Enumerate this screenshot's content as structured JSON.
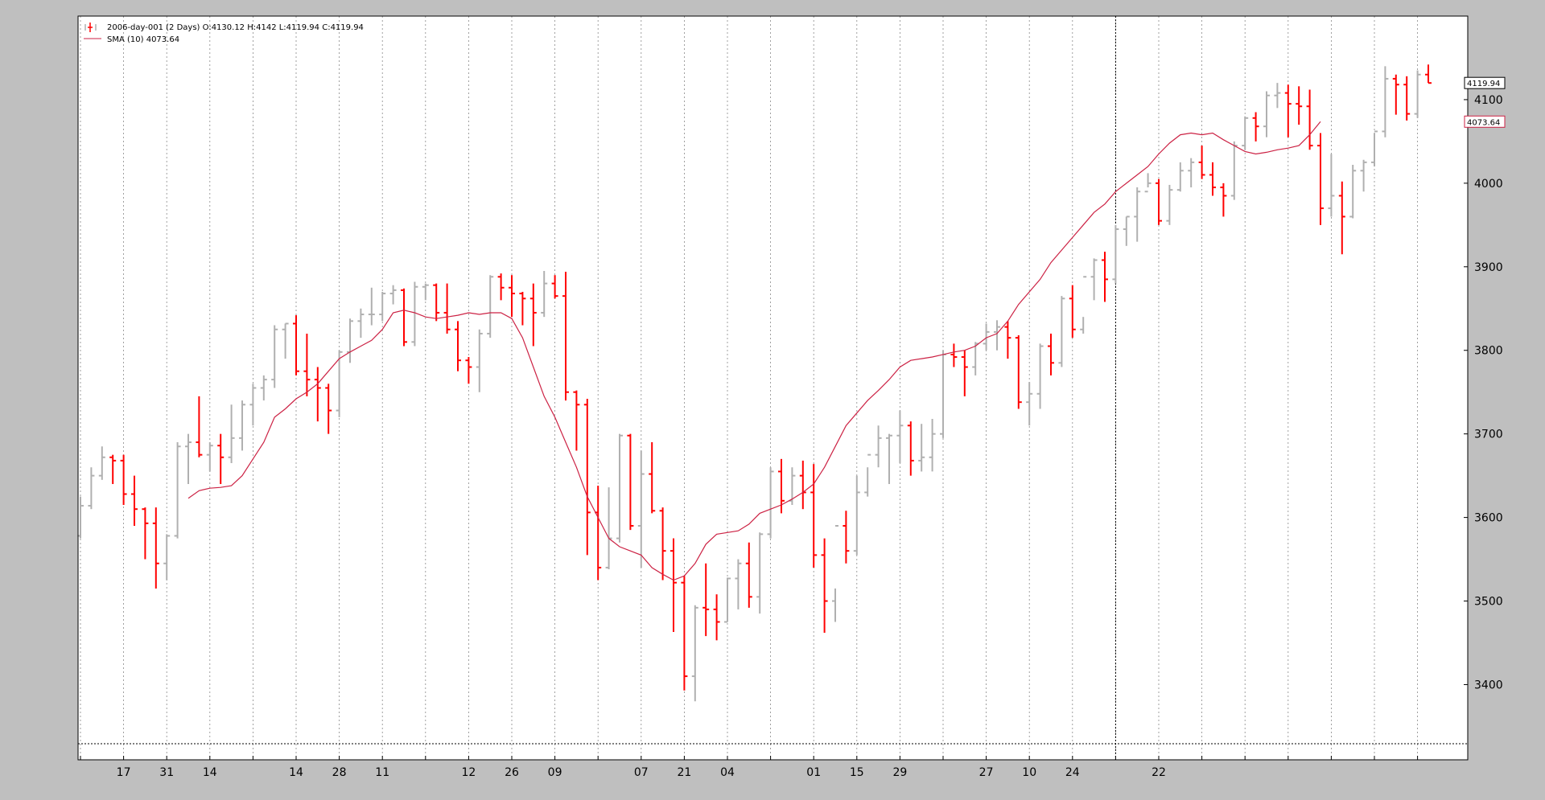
{
  "legend": {
    "ohlc_label": "2006-day-001 (2 Days) O:4130.12 H:4142 L:4119.94 C:4119.94",
    "sma_label": "SMA (10) 4073.64"
  },
  "price_tags": {
    "close": "4119.94",
    "sma": "4073.64"
  },
  "colors": {
    "up_bar": "#b0b0b0",
    "down_bar": "#ff0000",
    "sma_line": "#cc2244",
    "background": "#ffffff",
    "frame": "#bfbfbf",
    "grid": "#888888"
  },
  "chart_data": {
    "type": "ohlc",
    "grid": true,
    "legend_position": "top-left",
    "ylim": [
      3310,
      4200
    ],
    "yticks": [
      3400,
      3500,
      3600,
      3700,
      3800,
      3900,
      4000,
      4100
    ],
    "xtick_labels": [
      "17",
      "31",
      "14",
      "14",
      "28",
      "11",
      "12",
      "26",
      "09",
      "07",
      "21",
      "04",
      "01",
      "15",
      "29",
      "27",
      "10",
      "24",
      "22"
    ],
    "xtick_positions": [
      4,
      8,
      12,
      20,
      24,
      28,
      36,
      40,
      44,
      52,
      56,
      60,
      68,
      72,
      76,
      84,
      88,
      92,
      100
    ],
    "series": [
      {
        "name": "2006-day-001 (2 Days)",
        "style": "ohlc",
        "bars": [
          [
            3578,
            3625,
            3575,
            3614
          ],
          [
            3614,
            3660,
            3610,
            3650
          ],
          [
            3650,
            3685,
            3645,
            3672
          ],
          [
            3672,
            3675,
            3640,
            3668
          ],
          [
            3668,
            3675,
            3615,
            3628
          ],
          [
            3628,
            3650,
            3590,
            3610
          ],
          [
            3610,
            3612,
            3550,
            3593
          ],
          [
            3593,
            3612,
            3515,
            3545
          ],
          [
            3545,
            3580,
            3525,
            3578
          ],
          [
            3578,
            3690,
            3575,
            3685
          ],
          [
            3685,
            3700,
            3640,
            3690
          ],
          [
            3690,
            3745,
            3672,
            3675
          ],
          [
            3675,
            3690,
            3655,
            3686
          ],
          [
            3686,
            3700,
            3640,
            3672
          ],
          [
            3672,
            3735,
            3665,
            3695
          ],
          [
            3695,
            3740,
            3680,
            3735
          ],
          [
            3735,
            3760,
            3710,
            3755
          ],
          [
            3755,
            3770,
            3740,
            3765
          ],
          [
            3765,
            3830,
            3755,
            3825
          ],
          [
            3825,
            3832,
            3790,
            3832
          ],
          [
            3832,
            3842,
            3770,
            3775
          ],
          [
            3775,
            3820,
            3745,
            3765
          ],
          [
            3765,
            3780,
            3715,
            3755
          ],
          [
            3755,
            3760,
            3700,
            3728
          ],
          [
            3728,
            3800,
            3720,
            3798
          ],
          [
            3798,
            3838,
            3785,
            3835
          ],
          [
            3835,
            3850,
            3815,
            3843
          ],
          [
            3843,
            3875,
            3830,
            3843
          ],
          [
            3843,
            3870,
            3835,
            3868
          ],
          [
            3868,
            3878,
            3855,
            3872
          ],
          [
            3872,
            3874,
            3805,
            3810
          ],
          [
            3810,
            3882,
            3805,
            3876
          ],
          [
            3876,
            3880,
            3860,
            3878
          ],
          [
            3878,
            3880,
            3835,
            3845
          ],
          [
            3845,
            3880,
            3820,
            3825
          ],
          [
            3825,
            3835,
            3775,
            3788
          ],
          [
            3788,
            3792,
            3760,
            3780
          ],
          [
            3780,
            3825,
            3750,
            3820
          ],
          [
            3820,
            3890,
            3815,
            3888
          ],
          [
            3888,
            3892,
            3860,
            3875
          ],
          [
            3875,
            3890,
            3840,
            3868
          ],
          [
            3868,
            3870,
            3830,
            3862
          ],
          [
            3862,
            3880,
            3805,
            3845
          ],
          [
            3845,
            3895,
            3840,
            3880
          ],
          [
            3880,
            3890,
            3862,
            3865
          ],
          [
            3865,
            3894,
            3740,
            3750
          ],
          [
            3750,
            3752,
            3680,
            3735
          ],
          [
            3735,
            3742,
            3555,
            3606
          ],
          [
            3606,
            3638,
            3525,
            3540
          ],
          [
            3540,
            3636,
            3538,
            3575
          ],
          [
            3575,
            3700,
            3570,
            3698
          ],
          [
            3698,
            3700,
            3585,
            3590
          ],
          [
            3590,
            3680,
            3540,
            3652
          ],
          [
            3652,
            3690,
            3605,
            3608
          ],
          [
            3608,
            3612,
            3525,
            3560
          ],
          [
            3560,
            3575,
            3463,
            3522
          ],
          [
            3522,
            3530,
            3393,
            3410
          ],
          [
            3410,
            3495,
            3380,
            3492
          ],
          [
            3492,
            3545,
            3458,
            3490
          ],
          [
            3490,
            3508,
            3453,
            3475
          ],
          [
            3475,
            3528,
            3475,
            3527
          ],
          [
            3527,
            3550,
            3490,
            3545
          ],
          [
            3545,
            3570,
            3492,
            3505
          ],
          [
            3505,
            3582,
            3485,
            3580
          ],
          [
            3580,
            3660,
            3575,
            3655
          ],
          [
            3655,
            3670,
            3605,
            3620
          ],
          [
            3620,
            3660,
            3615,
            3650
          ],
          [
            3650,
            3668,
            3610,
            3630
          ],
          [
            3630,
            3664,
            3540,
            3555
          ],
          [
            3555,
            3575,
            3462,
            3500
          ],
          [
            3500,
            3515,
            3475,
            3590
          ],
          [
            3590,
            3608,
            3545,
            3560
          ],
          [
            3560,
            3650,
            3555,
            3630
          ],
          [
            3630,
            3660,
            3625,
            3675
          ],
          [
            3675,
            3710,
            3660,
            3695
          ],
          [
            3695,
            3700,
            3640,
            3698
          ],
          [
            3698,
            3728,
            3665,
            3710
          ],
          [
            3710,
            3715,
            3650,
            3668
          ],
          [
            3668,
            3712,
            3655,
            3672
          ],
          [
            3672,
            3718,
            3655,
            3700
          ],
          [
            3700,
            3800,
            3695,
            3795
          ],
          [
            3795,
            3808,
            3780,
            3792
          ],
          [
            3792,
            3800,
            3745,
            3780
          ],
          [
            3780,
            3810,
            3770,
            3808
          ],
          [
            3808,
            3832,
            3800,
            3822
          ],
          [
            3822,
            3836,
            3800,
            3828
          ],
          [
            3828,
            3835,
            3790,
            3815
          ],
          [
            3815,
            3818,
            3730,
            3738
          ],
          [
            3738,
            3762,
            3710,
            3748
          ],
          [
            3748,
            3808,
            3730,
            3805
          ],
          [
            3805,
            3820,
            3770,
            3785
          ],
          [
            3785,
            3865,
            3780,
            3862
          ],
          [
            3862,
            3878,
            3815,
            3825
          ],
          [
            3825,
            3840,
            3820,
            3888
          ],
          [
            3888,
            3910,
            3860,
            3908
          ],
          [
            3908,
            3918,
            3858,
            3885
          ],
          [
            3885,
            3950,
            3880,
            3945
          ],
          [
            3945,
            3960,
            3925,
            3960
          ],
          [
            3960,
            3995,
            3930,
            3990
          ],
          [
            3990,
            4012,
            3995,
            4000
          ],
          [
            4000,
            4005,
            3950,
            3955
          ],
          [
            3955,
            3998,
            3950,
            3992
          ],
          [
            3992,
            4025,
            3990,
            4015
          ],
          [
            4015,
            4030,
            3995,
            4025
          ],
          [
            4025,
            4045,
            4005,
            4010
          ],
          [
            4010,
            4025,
            3985,
            3995
          ],
          [
            3995,
            4000,
            3960,
            3985
          ],
          [
            3985,
            4050,
            3980,
            4045
          ],
          [
            4045,
            4080,
            4040,
            4078
          ],
          [
            4078,
            4085,
            4050,
            4068
          ],
          [
            4068,
            4110,
            4055,
            4105
          ],
          [
            4105,
            4120,
            4090,
            4108
          ],
          [
            4108,
            4118,
            4055,
            4095
          ],
          [
            4095,
            4116,
            4070,
            4092
          ],
          [
            4092,
            4112,
            4040,
            4045
          ],
          [
            4045,
            4060,
            3950,
            3970
          ],
          [
            3970,
            4035,
            3960,
            3985
          ],
          [
            3985,
            4002,
            3915,
            3960
          ],
          [
            3960,
            4022,
            3958,
            4015
          ],
          [
            4015,
            4028,
            3990,
            4025
          ],
          [
            4025,
            4060,
            4020,
            4062
          ],
          [
            4062,
            4140,
            4055,
            4125
          ],
          [
            4125,
            4130,
            4082,
            4118
          ],
          [
            4118,
            4128,
            4075,
            4083
          ],
          [
            4083,
            4135,
            4078,
            4130
          ],
          [
            4130,
            4142,
            4119.94,
            4119.94
          ]
        ]
      },
      {
        "name": "SMA (10)",
        "style": "line",
        "offset": 10,
        "values": [
          3623,
          3632,
          3635,
          3636,
          3638,
          3650,
          3670,
          3690,
          3720,
          3730,
          3742,
          3750,
          3760,
          3775,
          3790,
          3798,
          3805,
          3812,
          3825,
          3845,
          3848,
          3845,
          3840,
          3838,
          3840,
          3842,
          3845,
          3843,
          3845,
          3845,
          3838,
          3815,
          3780,
          3745,
          3720,
          3690,
          3660,
          3625,
          3600,
          3575,
          3565,
          3560,
          3555,
          3540,
          3532,
          3525,
          3530,
          3545,
          3568,
          3580,
          3582,
          3584,
          3592,
          3605,
          3610,
          3615,
          3622,
          3630,
          3640,
          3660,
          3685,
          3710,
          3725,
          3740,
          3752,
          3765,
          3780,
          3788,
          3790,
          3792,
          3795,
          3798,
          3800,
          3805,
          3815,
          3820,
          3835,
          3855,
          3870,
          3885,
          3905,
          3920,
          3935,
          3950,
          3965,
          3975,
          3990,
          4000,
          4010,
          4020,
          4035,
          4048,
          4058,
          4060,
          4058,
          4060,
          4052,
          4045,
          4038,
          4035,
          4037,
          4040,
          4042,
          4045,
          4058,
          4073.64
        ]
      }
    ]
  }
}
